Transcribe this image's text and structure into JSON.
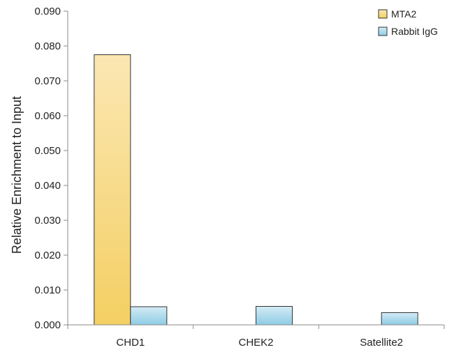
{
  "chart_data": {
    "type": "bar",
    "title": "",
    "xlabel": "",
    "ylabel": "Relative Enrichment to Input",
    "categories": [
      "CHD1",
      "CHEK2",
      "Satellite2"
    ],
    "ylim": [
      0,
      0.09
    ],
    "yticks": [
      "0.000",
      "0.010",
      "0.020",
      "0.030",
      "0.040",
      "0.050",
      "0.060",
      "0.070",
      "0.080",
      "0.090"
    ],
    "grid": false,
    "legend_position": "top-right",
    "series": [
      {
        "name": "MTA2",
        "values": [
          0.0775,
          0,
          0
        ],
        "color_top": "#fbe7b3",
        "color_bottom": "#f4cf63",
        "stroke": "#333333"
      },
      {
        "name": "Rabbit IgG",
        "values": [
          0.0052,
          0.0053,
          0.0035
        ],
        "color_top": "#d4ecf6",
        "color_bottom": "#8ecbe4",
        "stroke": "#333333"
      }
    ]
  }
}
